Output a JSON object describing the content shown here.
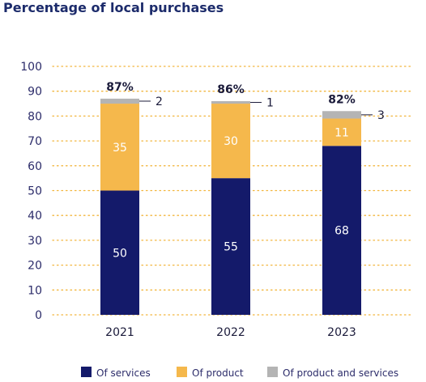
{
  "chart_data": {
    "type": "bar",
    "stacked": true,
    "title": "Percentage of local purchases",
    "categories": [
      "2021",
      "2022",
      "2023"
    ],
    "series": [
      {
        "name": "Of services",
        "color": "#141a6a",
        "values": [
          50,
          55,
          68
        ],
        "label_color": "#ffffff"
      },
      {
        "name": "Of product",
        "color": "#f5b84c",
        "values": [
          35,
          30,
          11
        ],
        "label_color": "#ffffff"
      },
      {
        "name": "Of product and services",
        "color": "#b4b4b4",
        "values": [
          2,
          1,
          3
        ],
        "label_color": "#1a1a3a"
      }
    ],
    "totals": [
      "87%",
      "86%",
      "82%"
    ],
    "ylim": [
      0,
      100
    ],
    "yticks": [
      0,
      10,
      20,
      30,
      40,
      50,
      60,
      70,
      80,
      90,
      100
    ],
    "grid": true,
    "legend_position": "bottom"
  }
}
